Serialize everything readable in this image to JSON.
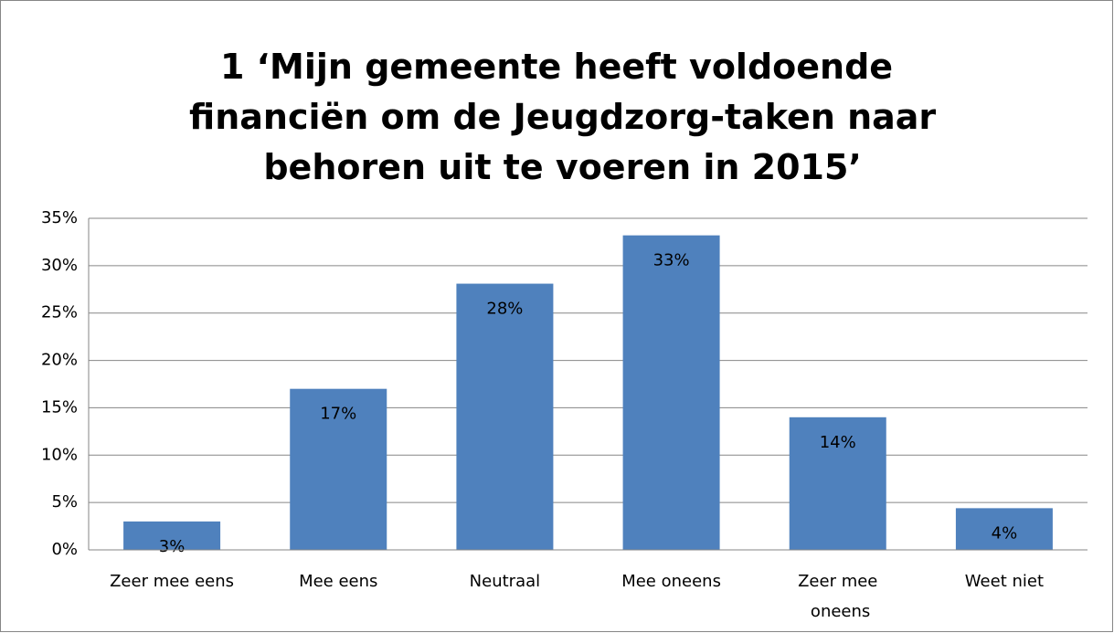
{
  "chart_data": {
    "type": "bar",
    "title": "1 ‘Mijn gemeente heeft voldoende financiën om de Jeugdzorg-taken naar behoren uit te voeren in 2015’",
    "categories": [
      "Zeer mee eens",
      "Mee eens",
      "Neutraal",
      "Mee oneens",
      "Zeer mee oneens",
      "Weet niet"
    ],
    "values": [
      3,
      17,
      28.1,
      33.2,
      14,
      4.4
    ],
    "value_labels": [
      "3%",
      "17%",
      "28%",
      "33%",
      "14%",
      "4%"
    ],
    "color": "#4f81bd",
    "ylim": [
      0,
      35
    ],
    "yticks": [
      {
        "value": 0,
        "label": "0%"
      },
      {
        "value": 5,
        "label": "5%"
      },
      {
        "value": 10,
        "label": "10%"
      },
      {
        "value": 15,
        "label": "15%"
      },
      {
        "value": 20,
        "label": "20%"
      },
      {
        "value": 25,
        "label": "25%"
      },
      {
        "value": 30,
        "label": "30%"
      },
      {
        "value": 35,
        "label": "35%"
      }
    ],
    "grid": true
  }
}
